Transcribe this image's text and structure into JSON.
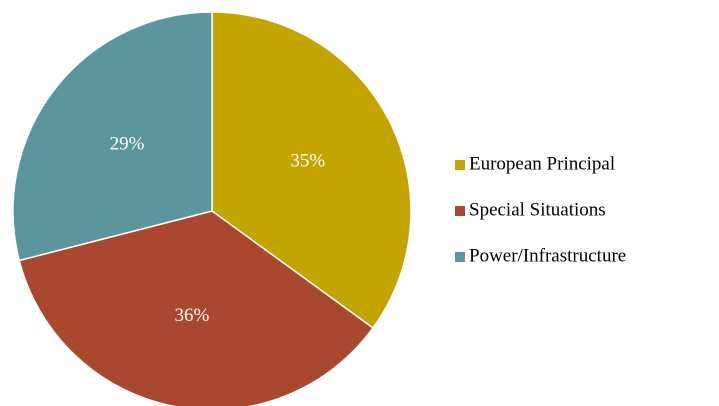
{
  "chart_data": {
    "type": "pie",
    "categories": [
      "European Principal",
      "Special Situations",
      "Power/Infrastructure"
    ],
    "values": [
      35,
      36,
      29
    ],
    "value_labels": [
      "35%",
      "36%",
      "29%"
    ],
    "colors": [
      "#c4a500",
      "#a9482e",
      "#5b969e"
    ],
    "legend": "right"
  }
}
